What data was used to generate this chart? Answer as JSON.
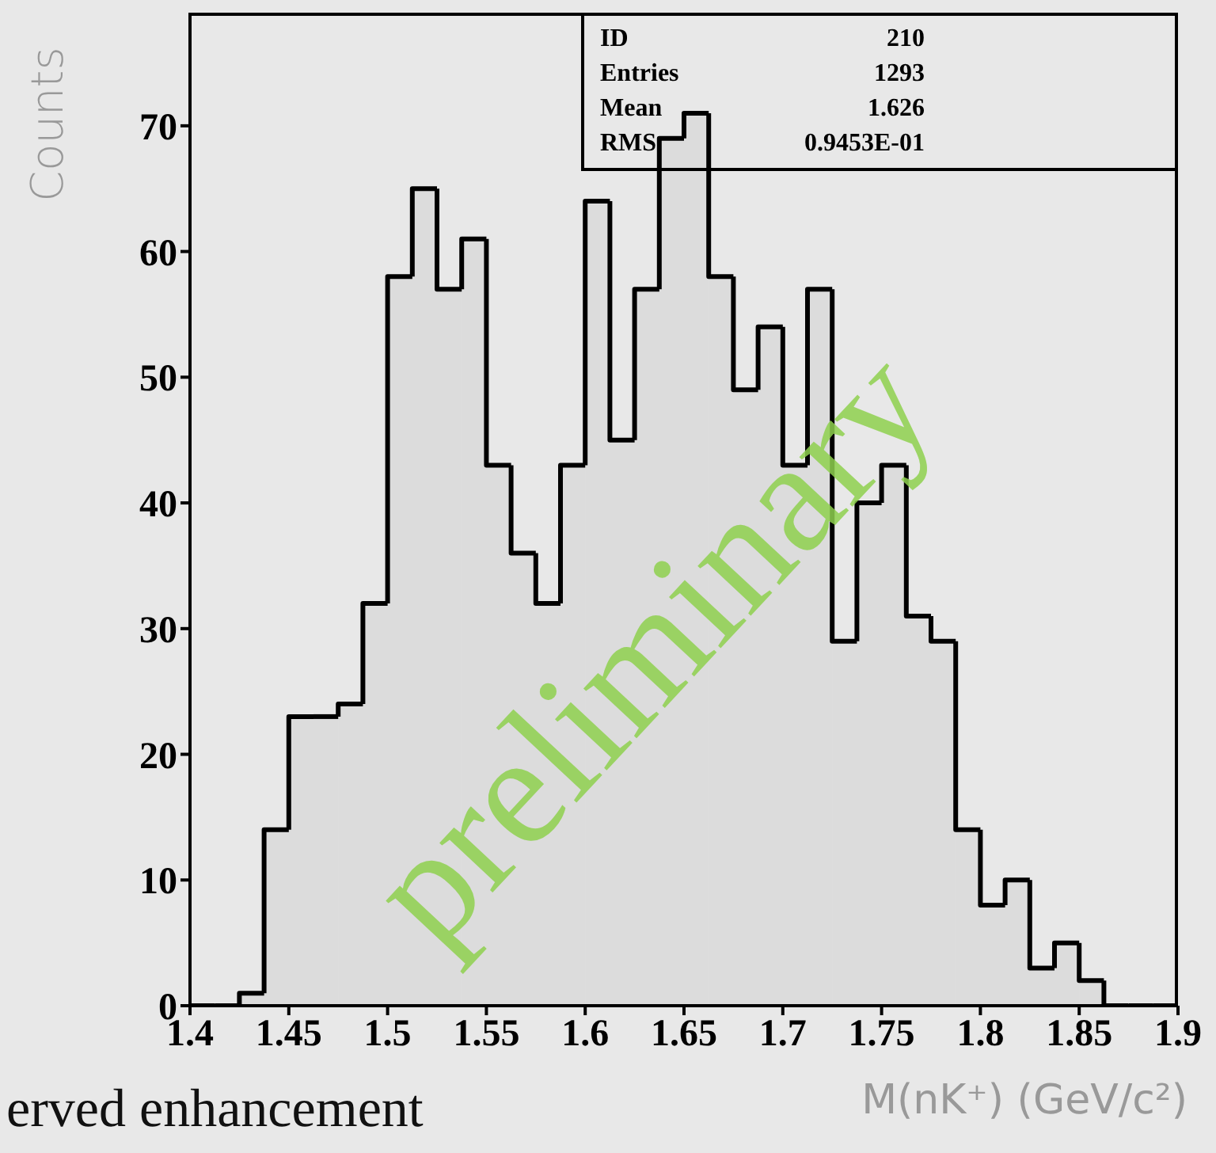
{
  "chart_data": {
    "type": "histogram",
    "bins": [
      1.4,
      1.4125,
      1.425,
      1.4375,
      1.45,
      1.4625,
      1.475,
      1.4875,
      1.5,
      1.5125,
      1.525,
      1.5375,
      1.55,
      1.5625,
      1.575,
      1.5875,
      1.6,
      1.6125,
      1.625,
      1.6375,
      1.65,
      1.6625,
      1.675,
      1.6875,
      1.7,
      1.7125,
      1.725,
      1.7375,
      1.75,
      1.7625,
      1.775,
      1.7875,
      1.8,
      1.8125,
      1.825,
      1.8375,
      1.85,
      1.8625,
      1.875,
      1.8875,
      1.9
    ],
    "values": [
      0,
      0,
      1,
      14,
      23,
      23,
      24,
      32,
      58,
      65,
      57,
      61,
      43,
      36,
      32,
      43,
      64,
      45,
      57,
      69,
      71,
      58,
      49,
      54,
      43,
      57,
      29,
      40,
      43,
      31,
      29,
      14,
      8,
      10,
      3,
      5,
      2,
      0,
      0,
      0
    ],
    "color": "#000000",
    "xlim": [
      1.4,
      1.9
    ],
    "xticks": [
      1.4,
      1.45,
      1.5,
      1.55,
      1.6,
      1.65,
      1.7,
      1.75,
      1.8,
      1.85,
      1.9
    ],
    "ylim": [
      0,
      79
    ],
    "yticks": [
      0,
      10,
      20,
      30,
      40,
      50,
      60,
      70
    ],
    "xlabel": "M(nK⁺) (GeV/c²)",
    "ylabel": "Counts",
    "annotations": [
      "ID",
      "210",
      "Entries",
      "1293",
      "Mean",
      "1.626",
      "RMS",
      "0.9453E-01",
      "preliminary",
      "erved enhancement"
    ],
    "line_style": "solid"
  }
}
